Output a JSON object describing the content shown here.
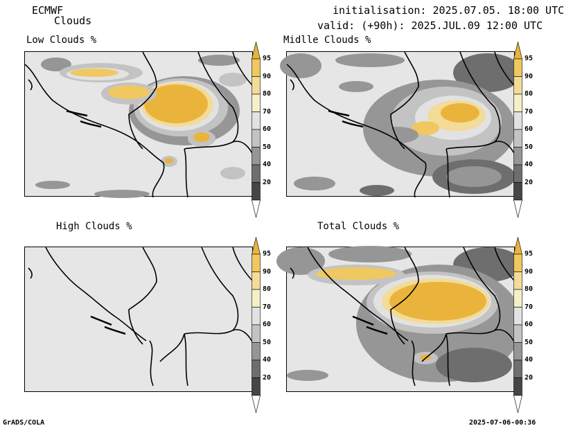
{
  "header": {
    "model": "ECMWF",
    "product": "Clouds",
    "initialisation": "initialisation: 2025.07.05. 18:00 UTC",
    "valid": "valid: (+90h): 2025.JUL.09 12:00 UTC"
  },
  "panels": [
    {
      "title": "Low Clouds %"
    },
    {
      "title": "Midlle Clouds %"
    },
    {
      "title": "High Clouds %"
    },
    {
      "title": "Total Clouds %"
    }
  ],
  "colorbar": {
    "levels": [
      "95",
      "90",
      "80",
      "70",
      "60",
      "50",
      "40",
      "20"
    ],
    "colors": [
      "#eab43c",
      "#f0c860",
      "#f3db98",
      "#f4f0c8",
      "#e2e2e2",
      "#c3c3c3",
      "#969696",
      "#6e6e6e",
      "#464646",
      "#ffffff"
    ]
  },
  "footer": {
    "left": "GrADS/COLA",
    "right": "2025-07-06-00:36"
  }
}
